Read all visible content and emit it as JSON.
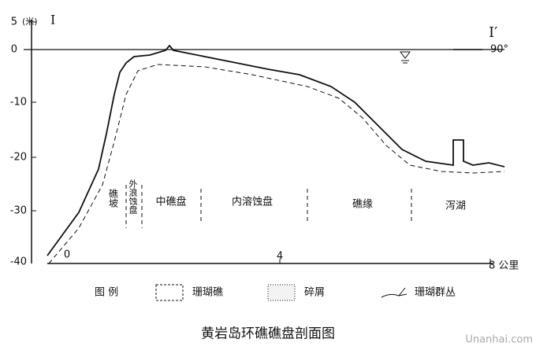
{
  "axis": {
    "unit": "(米)",
    "section_start": "I",
    "section_end": "I′",
    "direction": "90°",
    "y_labels": [
      "5",
      "0",
      "-10",
      "-20",
      "-30",
      "-40"
    ],
    "x_labels": [
      "0",
      "4",
      "8 公里"
    ]
  },
  "zones": [
    "礁坡",
    "外浪蚀盘",
    "中礁盘",
    "内溶蚀盘",
    "礁缘",
    "泻湖"
  ],
  "legend": {
    "title": "图 例",
    "items": [
      "珊瑚礁",
      "碎屑",
      "珊瑚群丛"
    ]
  },
  "title": "黄岩岛环礁礁盘剖面图",
  "watermark": "Unanhai.com"
}
